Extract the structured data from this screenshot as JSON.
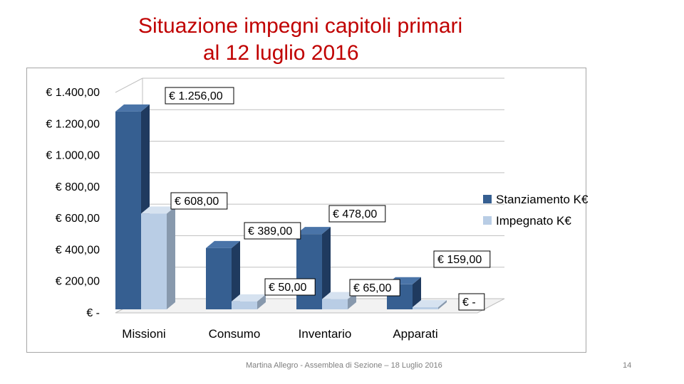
{
  "title_line1": "Situazione impegni capitoli primari",
  "title_line2": "al 12 luglio 2016",
  "footer": "Martina Allegro - Assemblea di Sezione – 18 Luglio 2016",
  "page_number": "14",
  "colors": {
    "title": "#c00000",
    "stanziamento_front": "#365f91",
    "stanziamento_side": "#1f3a5f",
    "stanziamento_top": "#4a74a8",
    "impegnato_front": "#b9cde5",
    "impegnato_side": "#8899ad",
    "impegnato_top": "#d6e2f0"
  },
  "chart_data": {
    "type": "bar",
    "categories": [
      "Missioni",
      "Consumo",
      "Inventario",
      "Apparati"
    ],
    "series": [
      {
        "name": "Stanziamento K€",
        "values": [
          1256,
          389,
          478,
          159
        ]
      },
      {
        "name": "Impegnato K€",
        "values": [
          608,
          50,
          65,
          0
        ]
      }
    ],
    "data_labels": [
      [
        "€ 1.256,00",
        "€ 389,00",
        "€ 478,00",
        "€ 159,00"
      ],
      [
        "€ 608,00",
        "€ 50,00",
        "€ 65,00",
        "€ -"
      ]
    ],
    "y_tick_labels": [
      "€ -",
      "€ 200,00",
      "€ 400,00",
      "€ 600,00",
      "€ 800,00",
      "€ 1.000,00",
      "€ 1.200,00",
      "€ 1.400,00"
    ],
    "y_tick_values": [
      0,
      200,
      400,
      600,
      800,
      1000,
      1200,
      1400
    ],
    "ylim": [
      0,
      1400
    ],
    "grid": true,
    "legend_position": "right",
    "style": "3d-clustered-column"
  }
}
